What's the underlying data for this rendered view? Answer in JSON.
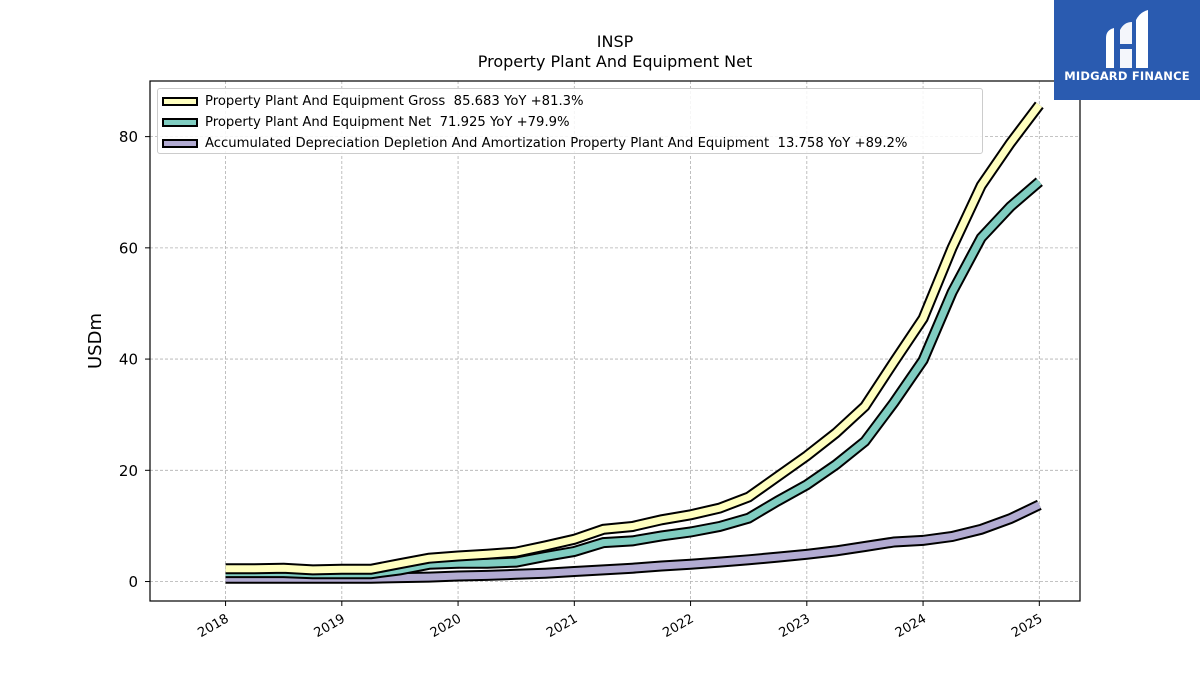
{
  "brand": {
    "name": "MIDGARD FINANCE",
    "bg_color": "#2a5bb0"
  },
  "chart_data": {
    "type": "line",
    "title": "INSP",
    "subtitle": "Property Plant And Equipment Net",
    "ylabel": "USDm",
    "xlabel": "",
    "ylim": [
      -3.5,
      90
    ],
    "xlim": [
      2017.35,
      2025.35
    ],
    "yticks": [
      0,
      20,
      40,
      60,
      80
    ],
    "xticks": [
      "2018",
      "2019",
      "2020",
      "2021",
      "2022",
      "2023",
      "2024",
      "2025"
    ],
    "grid": true,
    "legend_position": "top-left",
    "series": [
      {
        "name": "Property Plant And Equipment Gross",
        "legend_label": "Property Plant And Equipment Gross  85.683 YoY +81.3%",
        "color": "#ffffbf",
        "x": [
          2018.0,
          2018.25,
          2018.5,
          2018.75,
          2019.0,
          2019.25,
          2019.5,
          2019.75,
          2020.0,
          2020.25,
          2020.5,
          2020.75,
          2021.0,
          2021.25,
          2021.5,
          2021.75,
          2022.0,
          2022.25,
          2022.5,
          2022.75,
          2023.0,
          2023.25,
          2023.5,
          2023.75,
          2024.0,
          2024.25,
          2024.5,
          2024.75,
          2025.0
        ],
        "y": [
          2.3,
          2.3,
          2.4,
          2.1,
          2.2,
          2.2,
          3.2,
          4.2,
          4.6,
          4.9,
          5.3,
          6.4,
          7.6,
          9.4,
          9.9,
          11.1,
          12.0,
          13.2,
          15.2,
          18.9,
          22.6,
          26.7,
          31.5,
          39.5,
          47.3,
          60.0,
          71.2,
          78.8,
          85.7
        ]
      },
      {
        "name": "Property Plant And Equipment Net",
        "legend_label": "Property Plant And Equipment Net  71.925 YoY +79.9%",
        "color": "#80cdc1",
        "x": [
          2018.0,
          2018.25,
          2018.5,
          2018.75,
          2019.0,
          2019.25,
          2019.5,
          2019.75,
          2020.0,
          2020.25,
          2020.5,
          2020.75,
          2021.0,
          2021.25,
          2021.5,
          2021.75,
          2022.0,
          2022.25,
          2022.5,
          2022.75,
          2023.0,
          2023.25,
          2023.5,
          2023.75,
          2024.0,
          2024.25,
          2024.5,
          2024.75,
          2025.0
        ],
        "y": [
          1.6,
          1.6,
          1.6,
          1.4,
          1.4,
          1.4,
          2.1,
          3.1,
          3.3,
          3.3,
          3.5,
          4.5,
          5.4,
          7.0,
          7.3,
          8.2,
          8.9,
          9.9,
          11.4,
          14.5,
          17.4,
          21.0,
          25.2,
          32.2,
          39.8,
          52.0,
          61.8,
          67.4,
          71.9
        ]
      },
      {
        "name": "Accumulated Depreciation Depletion And Amortization Property Plant And Equipment",
        "legend_label": "Accumulated Depreciation Depletion And Amortization Property Plant And Equipment  13.758 YoY +89.2%",
        "color": "#b2abd2",
        "x": [
          2018.0,
          2018.25,
          2018.5,
          2018.75,
          2019.0,
          2019.25,
          2019.5,
          2019.75,
          2020.0,
          2020.25,
          2020.5,
          2020.75,
          2021.0,
          2021.25,
          2021.5,
          2021.75,
          2022.0,
          2022.25,
          2022.5,
          2022.75,
          2023.0,
          2023.25,
          2023.5,
          2023.75,
          2024.0,
          2024.25,
          2024.5,
          2024.75,
          2025.0
        ],
        "y": [
          0.6,
          0.6,
          0.6,
          0.6,
          0.6,
          0.6,
          0.7,
          0.8,
          1.0,
          1.1,
          1.3,
          1.5,
          1.8,
          2.1,
          2.4,
          2.8,
          3.1,
          3.5,
          3.9,
          4.4,
          4.9,
          5.5,
          6.3,
          7.1,
          7.4,
          8.1,
          9.4,
          11.3,
          13.8
        ]
      }
    ]
  }
}
